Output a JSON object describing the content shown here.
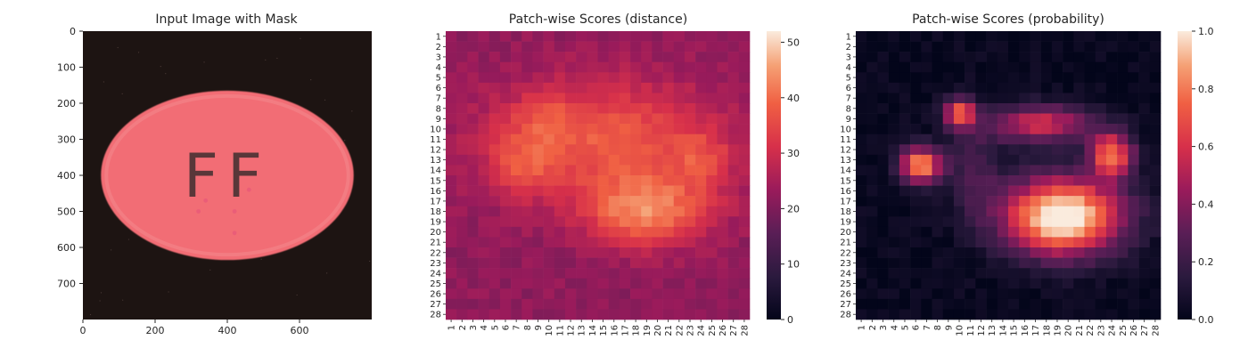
{
  "chart_data": [
    {
      "type": "image",
      "title": "Input Image with Mask",
      "x_ticks": [
        0,
        200,
        400,
        600
      ],
      "y_ticks": [
        0,
        100,
        200,
        300,
        400,
        500,
        600,
        700
      ],
      "xlim": [
        0,
        800
      ],
      "ylim": [
        800,
        0
      ],
      "content": {
        "object": "pill",
        "text": "FF",
        "background_color": "#1d1412",
        "object_color": "#f26d74",
        "center": [
          400,
          400
        ],
        "radii": [
          350,
          235
        ]
      }
    },
    {
      "type": "heatmap",
      "title": "Patch-wise Scores (distance)",
      "rows": 28,
      "cols": 28,
      "x_tick_labels": [
        "1",
        "2",
        "3",
        "4",
        "5",
        "6",
        "7",
        "8",
        "9",
        "10",
        "11",
        "12",
        "13",
        "14",
        "15",
        "16",
        "17",
        "18",
        "19",
        "20",
        "21",
        "22",
        "23",
        "24",
        "25",
        "26",
        "27",
        "28"
      ],
      "y_tick_labels": [
        "1",
        "2",
        "3",
        "4",
        "5",
        "6",
        "7",
        "8",
        "9",
        "10",
        "11",
        "12",
        "13",
        "14",
        "15",
        "16",
        "17",
        "18",
        "19",
        "20",
        "21",
        "22",
        "23",
        "24",
        "25",
        "26",
        "27",
        "28"
      ],
      "colorbar": {
        "min": 0,
        "max": 52,
        "ticks": [
          0,
          10,
          20,
          30,
          40,
          50
        ]
      },
      "colormap": "rocket",
      "estimated": true,
      "background_level": 22,
      "blobs": [
        {
          "row": 11,
          "col": 15,
          "sr": 4.0,
          "sc": 7.5,
          "amp": 16
        },
        {
          "row": 18,
          "col": 19,
          "sr": 2.3,
          "sc": 4.0,
          "amp": 20
        },
        {
          "row": 13.5,
          "col": 7.5,
          "sr": 2.0,
          "sc": 2.0,
          "amp": 9
        },
        {
          "row": 13,
          "col": 24,
          "sr": 2.0,
          "sc": 2.0,
          "amp": 8
        },
        {
          "row": 9,
          "col": 9.5,
          "sr": 1.6,
          "sc": 1.8,
          "amp": 6
        }
      ]
    },
    {
      "type": "heatmap",
      "title": "Patch-wise Scores (probability)",
      "rows": 28,
      "cols": 28,
      "x_tick_labels": [
        "1",
        "2",
        "3",
        "4",
        "5",
        "6",
        "7",
        "8",
        "9",
        "10",
        "11",
        "12",
        "13",
        "14",
        "15",
        "16",
        "17",
        "18",
        "19",
        "20",
        "21",
        "22",
        "23",
        "24",
        "25",
        "26",
        "27",
        "28"
      ],
      "y_tick_labels": [
        "1",
        "2",
        "3",
        "4",
        "5",
        "6",
        "7",
        "8",
        "9",
        "10",
        "11",
        "12",
        "13",
        "14",
        "15",
        "16",
        "17",
        "18",
        "19",
        "20",
        "21",
        "22",
        "23",
        "24",
        "25",
        "26",
        "27",
        "28"
      ],
      "colorbar": {
        "min": 0,
        "max": 1,
        "ticks": [
          "0.0",
          "0.2",
          "0.4",
          "0.6",
          "0.8",
          "1.0"
        ]
      },
      "colormap": "rocket",
      "estimated": true,
      "background_level": 0.02,
      "blobs": [
        {
          "row": 18.5,
          "col": 19.5,
          "sr": 2.6,
          "sc": 3.8,
          "amp": 1.1
        },
        {
          "row": 13.5,
          "col": 6.5,
          "sr": 1.2,
          "sc": 1.4,
          "amp": 0.85
        },
        {
          "row": 12.5,
          "col": 24,
          "sr": 1.5,
          "sc": 1.4,
          "amp": 0.75
        },
        {
          "row": 9.5,
          "col": 17.5,
          "sr": 1.3,
          "sc": 3.5,
          "amp": 0.55
        },
        {
          "row": 8.5,
          "col": 10,
          "sr": 1.0,
          "sc": 1.0,
          "amp": 0.7
        },
        {
          "row": 14,
          "col": 11.5,
          "sr": 3.5,
          "sc": 1.6,
          "amp": 0.2
        }
      ]
    }
  ]
}
